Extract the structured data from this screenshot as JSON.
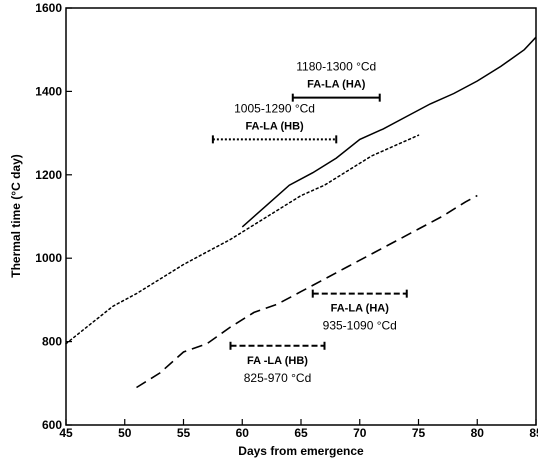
{
  "chart_data": {
    "type": "line",
    "xlabel": "Days from emergence",
    "ylabel": "Thermal time (°C day)",
    "xlim": [
      45,
      85
    ],
    "ylim": [
      600,
      1600
    ],
    "xticks": [
      "45",
      "50",
      "55",
      "60",
      "65",
      "70",
      "75",
      "80",
      "85"
    ],
    "yticks": [
      "600",
      "800",
      "1000",
      "1200",
      "1400",
      "1600"
    ],
    "grid": false,
    "series": [
      {
        "style": "solid",
        "x": [
          60,
          62,
          64,
          66,
          68,
          70,
          72,
          74,
          76,
          78,
          80,
          82,
          84,
          85
        ],
        "y": [
          1075,
          1125,
          1175,
          1205,
          1240,
          1285,
          1310,
          1340,
          1370,
          1395,
          1425,
          1460,
          1500,
          1530
        ]
      },
      {
        "style": "dotted",
        "x": [
          45,
          47,
          49,
          51,
          53,
          55,
          57,
          59,
          61,
          63,
          65,
          67,
          69,
          71,
          73,
          75
        ],
        "y": [
          795,
          840,
          885,
          915,
          950,
          985,
          1015,
          1045,
          1080,
          1115,
          1150,
          1175,
          1210,
          1245,
          1270,
          1295
        ]
      },
      {
        "style": "dashed",
        "x": [
          51,
          53,
          55,
          57,
          59,
          61,
          63,
          65,
          67,
          69,
          71,
          73,
          75,
          77,
          79,
          80
        ],
        "y": [
          690,
          725,
          775,
          795,
          835,
          870,
          890,
          920,
          950,
          980,
          1010,
          1040,
          1070,
          1100,
          1135,
          1150
        ]
      }
    ],
    "annotations": [
      {
        "id": "ha-upper",
        "style": "solid",
        "x_range": [
          64.3,
          71.7
        ],
        "y": 1385,
        "range_label": "1180-1300 °Cd",
        "stage_label": "FA-LA (HA)",
        "label_above": true
      },
      {
        "id": "hb-upper",
        "style": "dotted",
        "x_range": [
          57.5,
          68.0
        ],
        "y": 1285,
        "range_label": "1005-1290 °Cd",
        "stage_label": "FA-LA (HB)",
        "label_above": true
      },
      {
        "id": "ha-lower",
        "style": "dashed",
        "x_range": [
          66.0,
          74.0
        ],
        "y": 915,
        "range_label": "935-1090 °Cd",
        "stage_label": "FA-LA (HA)",
        "label_above": false
      },
      {
        "id": "hb-lower",
        "style": "dashed",
        "x_range": [
          59.0,
          67.0
        ],
        "y": 790,
        "range_label": "825-970 °Cd",
        "stage_label": "FA -LA (HB)",
        "label_above": false
      }
    ]
  }
}
